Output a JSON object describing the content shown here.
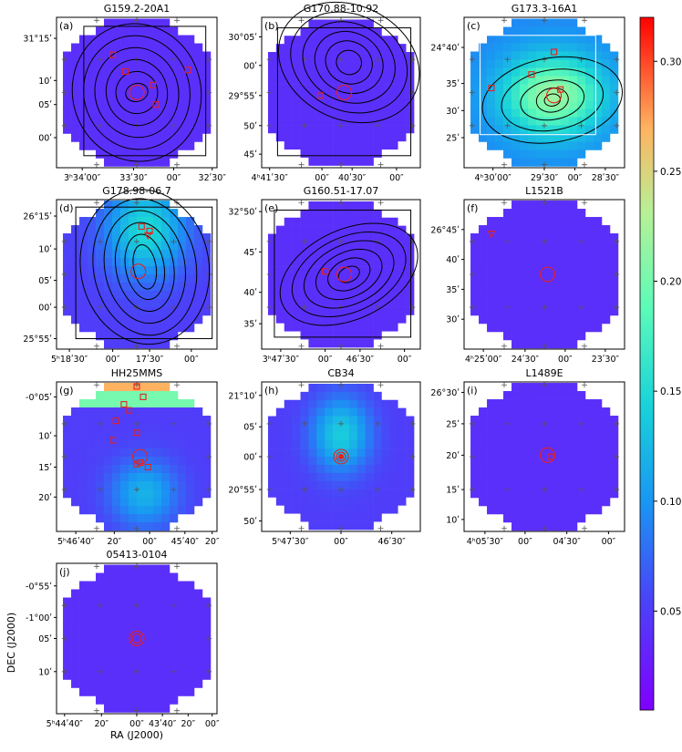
{
  "figure": {
    "xlabel": "RA (J2000)",
    "ylabel": "DEC (J2000)"
  },
  "colorbar": {
    "ticks": [
      "0.05",
      "0.10",
      "0.15",
      "0.20",
      "0.25",
      "0.30"
    ],
    "tick_values": [
      0.05,
      0.1,
      0.15,
      0.2,
      0.25,
      0.3
    ],
    "range": [
      0.005,
      0.32
    ],
    "colormap": "rainbow"
  },
  "chart_data": [
    {
      "type": "heatmap",
      "panel": "(a)",
      "title": "G159.2-20A1",
      "xticks": [
        "3ʰ34ʹ00″",
        "33ʹ30″",
        "00″",
        "32ʹ30″"
      ],
      "yticks": [
        "31°15ʹ",
        "10ʹ",
        "05ʹ",
        "00ʹ"
      ],
      "background_value": 0.04,
      "contours": true,
      "box": true,
      "markers": [
        "circle",
        "square",
        "square",
        "square",
        "square",
        "square"
      ]
    },
    {
      "type": "heatmap",
      "panel": "(b)",
      "title": "G170.88-10.92",
      "xticks": [
        "4ʰ41ʹ30″",
        "00″",
        "40ʹ30″",
        "00″"
      ],
      "yticks": [
        "30°05ʹ",
        "00ʹ",
        "29°55ʹ",
        "50ʹ",
        "45ʹ"
      ],
      "background_value": 0.04,
      "contours": true,
      "box": true,
      "markers": [
        "circle",
        "square"
      ]
    },
    {
      "type": "heatmap",
      "panel": "(c)",
      "title": "G173.3-16A1",
      "xticks": [
        "4ʰ30ʹ00″",
        "29ʹ30″",
        "00″",
        "28ʹ30″"
      ],
      "yticks": [
        "24°40ʹ",
        "35ʹ",
        "30ʹ",
        "25ʹ"
      ],
      "background_value": 0.09,
      "peak_value": 0.22,
      "contours": true,
      "box": true,
      "markers": [
        "circle",
        "square",
        "square",
        "square",
        "square"
      ]
    },
    {
      "type": "heatmap",
      "panel": "(d)",
      "title": "G178.98-06.7",
      "xticks": [
        "5ʰ18ʹ30″",
        "00″",
        "17ʹ30″",
        "00″"
      ],
      "yticks": [
        "26°15ʹ",
        "10ʹ",
        "05ʹ",
        "00ʹ",
        "25°55ʹ"
      ],
      "background_value": 0.05,
      "peak_value": 0.15,
      "contours": true,
      "box": true,
      "markers": [
        "circle",
        "square",
        "square",
        "triangle"
      ]
    },
    {
      "type": "heatmap",
      "panel": "(e)",
      "title": "G160.51-17.07",
      "xticks": [
        "3ʰ47ʹ30″",
        "00″",
        "46ʹ30″",
        "00″"
      ],
      "yticks": [
        "32°50ʹ",
        "45ʹ",
        "40ʹ",
        "35ʹ"
      ],
      "background_value": 0.04,
      "contours": true,
      "box": true,
      "markers": [
        "circle",
        "square"
      ]
    },
    {
      "type": "heatmap",
      "panel": "(f)",
      "title": "L1521B",
      "xticks": [
        "4ʰ25ʹ00″",
        "24ʹ30″",
        "00″",
        "23ʹ30″"
      ],
      "yticks": [
        "26°45ʹ",
        "40ʹ",
        "35ʹ",
        "30ʹ"
      ],
      "background_value": 0.04,
      "contours": false,
      "box": false,
      "markers": [
        "circle",
        "triangle"
      ]
    },
    {
      "type": "heatmap",
      "panel": "(g)",
      "title": "HH25MMS",
      "xticks": [
        "5ʰ46ʹ40″",
        "20″",
        "00″",
        "45ʹ40″",
        "20″"
      ],
      "yticks": [
        "-0°05ʹ",
        "10ʹ",
        "15ʹ",
        "20ʹ"
      ],
      "background_value": 0.05,
      "peak_value": 0.27,
      "contours": false,
      "box": false,
      "markers": [
        "circle",
        "square",
        "square",
        "square",
        "square",
        "square",
        "square",
        "square",
        "square",
        "square",
        "square"
      ]
    },
    {
      "type": "heatmap",
      "panel": "(h)",
      "title": "CB34",
      "xticks": [
        "5ʰ47ʹ30″",
        "00″",
        "46ʹ30″"
      ],
      "yticks": [
        "21°10ʹ",
        "05ʹ",
        "00ʹ",
        "20°55ʹ",
        "50ʹ"
      ],
      "background_value": 0.05,
      "peak_value": 0.14,
      "contours": false,
      "box": false,
      "markers": [
        "circle",
        "circle",
        "circle"
      ]
    },
    {
      "type": "heatmap",
      "panel": "(i)",
      "title": "L1489E",
      "xticks": [
        "4ʰ05ʹ30″",
        "00″",
        "04ʹ30″",
        "00″"
      ],
      "yticks": [
        "26°30ʹ",
        "25ʹ",
        "20ʹ",
        "15ʹ",
        "10ʹ"
      ],
      "background_value": 0.04,
      "contours": false,
      "box": false,
      "markers": [
        "circle",
        "square"
      ]
    },
    {
      "type": "heatmap",
      "panel": "(j)",
      "title": "05413-0104",
      "xticks": [
        "5ʰ44ʹ40″",
        "20″",
        "00″",
        "43ʹ40″",
        "20″",
        "00″"
      ],
      "yticks": [
        "-0°55ʹ",
        "-1°00ʹ",
        "05ʹ",
        "10ʹ"
      ],
      "background_value": 0.04,
      "contours": false,
      "box": false,
      "markers": [
        "circle",
        "circle"
      ]
    }
  ]
}
